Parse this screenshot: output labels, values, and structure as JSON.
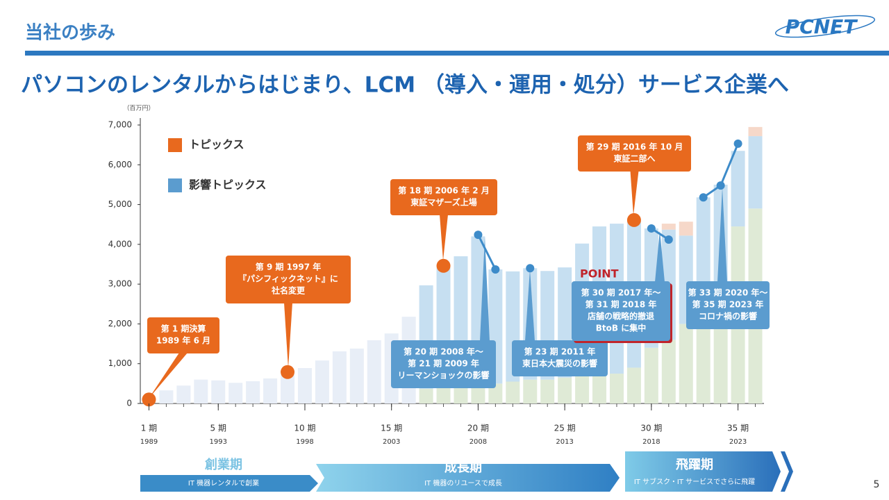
{
  "header": {
    "title": "当社の歩み",
    "logo": "PCNET"
  },
  "headline": "パソコンのレンタルからはじまり、LCM （導入・運用・処分）サービス企業へ",
  "chart_data": {
    "type": "bar",
    "stacked": true,
    "y_label": "（百万円）",
    "x": [
      1,
      2,
      3,
      4,
      5,
      6,
      7,
      8,
      9,
      10,
      11,
      12,
      13,
      14,
      15,
      16,
      17,
      18,
      19,
      20,
      21,
      22,
      23,
      24,
      25,
      26,
      27,
      28,
      29,
      30,
      31,
      32,
      33,
      34,
      35,
      36
    ],
    "xlim": [
      0.5,
      36.5
    ],
    "xticks": [
      {
        "value": 1,
        "label": "1 期"
      },
      {
        "value": 5,
        "label": "5 期"
      },
      {
        "value": 10,
        "label": "10 期"
      },
      {
        "value": 15,
        "label": "15 期"
      },
      {
        "value": 20,
        "label": "20 期"
      },
      {
        "value": 25,
        "label": "25 期"
      },
      {
        "value": 30,
        "label": "30 期"
      },
      {
        "value": 35,
        "label": "35 期"
      }
    ],
    "xtick_years": [
      1989,
      1993,
      1998,
      2003,
      2008,
      2013,
      2018,
      2023
    ],
    "ylim": [
      0,
      7000
    ],
    "yticks": [
      0,
      {
        "value": 1000,
        "label": "1,000"
      },
      {
        "value": 2000,
        "label": "2,000"
      },
      {
        "value": 3000,
        "label": "3,000"
      },
      {
        "value": 4000,
        "label": "4,000"
      },
      {
        "value": 5000,
        "label": "5,000"
      },
      {
        "value": 6000,
        "label": "6,000"
      },
      {
        "value": 7000,
        "label": "7,000"
      }
    ],
    "series": [
      {
        "color": "#e8eef7",
        "values": [
          null,
          330,
          450,
          600,
          580,
          520,
          560,
          630,
          720,
          890,
          1080,
          1310,
          1380,
          1590,
          1760,
          2180,
          null,
          null,
          null,
          null,
          null,
          null,
          null,
          null,
          null,
          null,
          null,
          null,
          null,
          null,
          null,
          null,
          null,
          null,
          null,
          null
        ]
      },
      {
        "color": "#dfead6",
        "values": [
          null,
          null,
          null,
          null,
          null,
          null,
          null,
          null,
          null,
          null,
          null,
          null,
          null,
          null,
          null,
          null,
          370,
          400,
          400,
          450,
          500,
          550,
          600,
          600,
          650,
          700,
          700,
          750,
          900,
          1400,
          1600,
          2000,
          2300,
          2800,
          4450,
          4900
        ]
      },
      {
        "color": "#c6dff1",
        "values": [
          null,
          null,
          null,
          null,
          null,
          null,
          null,
          null,
          null,
          null,
          null,
          null,
          null,
          null,
          null,
          null,
          2600,
          3060,
          3300,
          3750,
          2870,
          2770,
          2800,
          2730,
          2770,
          3320,
          3750,
          3770,
          3690,
          3000,
          2770,
          2220,
          2880,
          2700,
          1900,
          1820
        ]
      },
      {
        "color": "#f6d8c9",
        "values": [
          null,
          null,
          null,
          null,
          null,
          null,
          null,
          null,
          null,
          null,
          null,
          null,
          null,
          null,
          null,
          null,
          null,
          null,
          null,
          null,
          null,
          null,
          null,
          null,
          null,
          null,
          null,
          null,
          null,
          null,
          150,
          350,
          null,
          null,
          null,
          230
        ]
      }
    ],
    "markers": [
      {
        "name": "トピックス",
        "color": "#e8691e",
        "line": false,
        "values": [
          100,
          null,
          null,
          null,
          null,
          null,
          null,
          null,
          790,
          null,
          null,
          null,
          null,
          null,
          null,
          null,
          null,
          3460,
          null,
          null,
          null,
          null,
          null,
          null,
          null,
          null,
          null,
          null,
          4610,
          null,
          null,
          null,
          null,
          null,
          null,
          null
        ]
      },
      {
        "name": "影響トピックス",
        "color": "#3d8bc9",
        "line": true,
        "values": [
          null,
          null,
          null,
          null,
          null,
          null,
          null,
          null,
          null,
          null,
          null,
          null,
          null,
          null,
          null,
          null,
          null,
          null,
          null,
          4240,
          3370,
          null,
          3400,
          null,
          null,
          null,
          null,
          null,
          null,
          4400,
          4120,
          null,
          5180,
          5480,
          6530,
          null
        ]
      }
    ],
    "point_label": "POINT",
    "annotations": [
      {
        "lines": [
          "第 1 期決算",
          "1989 年 6 月"
        ],
        "color": "#e8691e"
      },
      {
        "lines": [
          "第 9 期 1997 年",
          "『パシフィックネット』に",
          "社名変更"
        ],
        "color": "#e8691e"
      },
      {
        "lines": [
          "第 18 期 2006 年 2 月",
          "東証マザーズ上場"
        ],
        "color": "#e8691e"
      },
      {
        "lines": [
          "第 29 期 2016 年 10 月",
          "東証二部へ"
        ],
        "color": "#e8691e"
      },
      {
        "lines": [
          "第 20 期 2008 年～",
          "第 21 期 2009 年",
          "リーマンショックの影響"
        ],
        "color": "#5b9ccf"
      },
      {
        "lines": [
          "第 23 期 2011 年",
          "東日本大震災の影響"
        ],
        "color": "#5b9ccf"
      },
      {
        "lines": [
          "第 30 期 2017 年～",
          "第 31 期 2018 年",
          "店舗の戦略的撤退",
          "BtoB に集中"
        ],
        "color": "#5b9ccf"
      },
      {
        "lines": [
          "第 33 期 2020 年～",
          "第 35 期 2023 年",
          "コロナ禍の影響"
        ],
        "color": "#5b9ccf"
      }
    ]
  },
  "phases": [
    {
      "title": "創業期",
      "subtitle": "IT 機器レンタルで創業"
    },
    {
      "title": "成長期",
      "subtitle": "IT 機器のリユースで成長"
    },
    {
      "title": "飛躍期",
      "subtitle": "IT サブスク・IT サービスでさらに飛躍"
    }
  ],
  "page_number": "5"
}
